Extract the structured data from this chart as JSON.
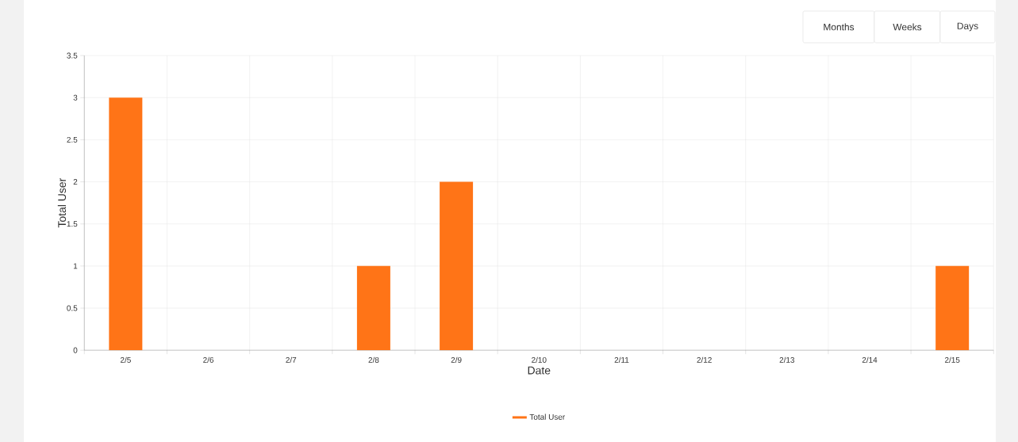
{
  "chart_data": {
    "type": "bar",
    "xlabel": "Date",
    "ylabel": "Total User",
    "categories": [
      "2/5",
      "2/6",
      "2/7",
      "2/8",
      "2/9",
      "2/10",
      "2/11",
      "2/12",
      "2/13",
      "2/14",
      "2/15"
    ],
    "series": [
      {
        "name": "Total User",
        "color": "#ff7417",
        "values": [
          3,
          0,
          0,
          1,
          2,
          0,
          0,
          0,
          0,
          0,
          1
        ]
      }
    ],
    "ylim": [
      0,
      3.5
    ],
    "yticks": [
      0,
      0.5,
      1,
      1.5,
      2,
      2.5,
      3,
      3.5
    ],
    "grid": true,
    "legend": "bottom",
    "annotations": [
      "Months",
      "Weeks",
      "Days"
    ]
  }
}
